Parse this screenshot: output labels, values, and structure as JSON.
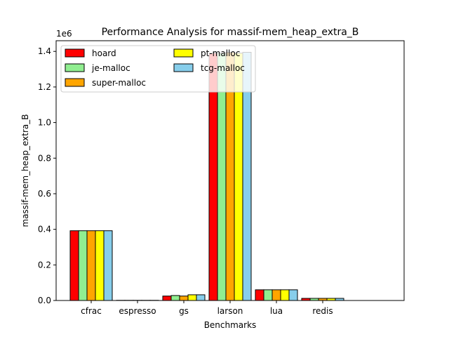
{
  "chart_data": {
    "type": "bar",
    "title": "Performance Analysis for massif-mem_heap_extra_B",
    "xlabel": "Benchmarks",
    "ylabel": "massif-mem_heap_extra_B",
    "y_offset_label": "1e6",
    "y_scale": 1000000,
    "ylim": [
      0,
      1460000
    ],
    "yticks": [
      0,
      200000,
      400000,
      600000,
      800000,
      1000000,
      1200000,
      1400000
    ],
    "ytick_labels": [
      "0.0",
      "0.2",
      "0.4",
      "0.6",
      "0.8",
      "1.0",
      "1.2",
      "1.4"
    ],
    "grid": false,
    "legend_position": "top-left",
    "categories": [
      "cfrac",
      "espresso",
      "gs",
      "larson",
      "lua",
      "redis"
    ],
    "series": [
      {
        "name": "hoard",
        "color": "#ff0000",
        "values": [
          392000,
          1000,
          25000,
          1390000,
          60000,
          12000
        ]
      },
      {
        "name": "je-malloc",
        "color": "#90ee90",
        "values": [
          392000,
          1000,
          28000,
          1390000,
          60000,
          12000
        ]
      },
      {
        "name": "super-malloc",
        "color": "#ffa500",
        "values": [
          392000,
          1000,
          25000,
          1395000,
          60000,
          12000
        ]
      },
      {
        "name": "pt-malloc",
        "color": "#ffff00",
        "values": [
          392000,
          1000,
          32000,
          1390000,
          60000,
          12000
        ]
      },
      {
        "name": "tcg-malloc",
        "color": "#87ceeb",
        "values": [
          392000,
          1000,
          32000,
          1395000,
          60000,
          12000
        ]
      }
    ]
  }
}
